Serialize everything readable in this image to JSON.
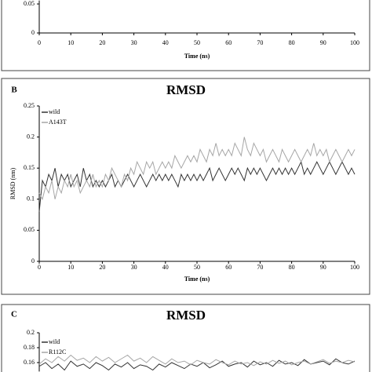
{
  "chart_data": [
    {
      "type": "line",
      "xlabel": "Time (ns)",
      "xlim": [
        0,
        100
      ],
      "xticks": [
        0,
        10,
        20,
        30,
        40,
        50,
        60,
        70,
        80,
        90,
        100
      ],
      "ylim": [
        0,
        0.056
      ],
      "yticks": [
        0,
        0.05
      ]
    },
    {
      "type": "line",
      "panel_label": "B",
      "title": "RMSD",
      "xlabel": "Time (ns)",
      "ylabel": "RMSD (nm)",
      "xlim": [
        0,
        100
      ],
      "xticks": [
        0,
        10,
        20,
        30,
        40,
        50,
        60,
        70,
        80,
        90,
        100
      ],
      "ylim": [
        0,
        0.25
      ],
      "yticks": [
        0,
        0.05,
        0.1,
        0.15,
        0.2,
        0.25
      ],
      "x": [
        0,
        1,
        2,
        3,
        4,
        5,
        6,
        7,
        8,
        9,
        10,
        11,
        12,
        13,
        14,
        15,
        16,
        17,
        18,
        19,
        20,
        21,
        22,
        23,
        24,
        25,
        26,
        27,
        28,
        29,
        30,
        31,
        32,
        33,
        34,
        35,
        36,
        37,
        38,
        39,
        40,
        41,
        42,
        43,
        44,
        45,
        46,
        47,
        48,
        49,
        50,
        51,
        52,
        53,
        54,
        55,
        56,
        57,
        58,
        59,
        60,
        61,
        62,
        63,
        64,
        65,
        66,
        67,
        68,
        69,
        70,
        71,
        72,
        73,
        74,
        75,
        76,
        77,
        78,
        79,
        80,
        81,
        82,
        83,
        84,
        85,
        86,
        87,
        88,
        89,
        90,
        91,
        92,
        93,
        94,
        95,
        96,
        97,
        98,
        99,
        100
      ],
      "series": [
        {
          "name": "wild",
          "color": "#333333",
          "values": [
            0.08,
            0.13,
            0.12,
            0.14,
            0.13,
            0.15,
            0.12,
            0.14,
            0.13,
            0.14,
            0.12,
            0.13,
            0.14,
            0.12,
            0.15,
            0.13,
            0.14,
            0.12,
            0.13,
            0.12,
            0.13,
            0.12,
            0.13,
            0.14,
            0.12,
            0.13,
            0.12,
            0.13,
            0.14,
            0.13,
            0.12,
            0.13,
            0.14,
            0.13,
            0.12,
            0.13,
            0.14,
            0.13,
            0.14,
            0.13,
            0.14,
            0.13,
            0.14,
            0.13,
            0.12,
            0.14,
            0.13,
            0.14,
            0.13,
            0.14,
            0.13,
            0.14,
            0.13,
            0.14,
            0.15,
            0.13,
            0.14,
            0.15,
            0.14,
            0.13,
            0.14,
            0.15,
            0.14,
            0.15,
            0.14,
            0.13,
            0.15,
            0.14,
            0.15,
            0.14,
            0.15,
            0.14,
            0.13,
            0.14,
            0.15,
            0.14,
            0.15,
            0.14,
            0.15,
            0.14,
            0.15,
            0.14,
            0.15,
            0.16,
            0.14,
            0.15,
            0.14,
            0.15,
            0.16,
            0.15,
            0.14,
            0.15,
            0.16,
            0.15,
            0.14,
            0.15,
            0.16,
            0.15,
            0.14,
            0.15,
            0.14
          ]
        },
        {
          "name": "A143T",
          "color": "#a6a6a6",
          "values": [
            0.11,
            0.1,
            0.12,
            0.11,
            0.13,
            0.1,
            0.12,
            0.11,
            0.13,
            0.12,
            0.14,
            0.12,
            0.13,
            0.11,
            0.12,
            0.13,
            0.12,
            0.14,
            0.12,
            0.13,
            0.12,
            0.14,
            0.13,
            0.15,
            0.14,
            0.13,
            0.12,
            0.14,
            0.13,
            0.15,
            0.14,
            0.16,
            0.15,
            0.14,
            0.16,
            0.15,
            0.16,
            0.14,
            0.15,
            0.16,
            0.15,
            0.16,
            0.15,
            0.17,
            0.16,
            0.15,
            0.16,
            0.17,
            0.16,
            0.17,
            0.16,
            0.18,
            0.17,
            0.16,
            0.18,
            0.17,
            0.19,
            0.17,
            0.18,
            0.17,
            0.18,
            0.17,
            0.19,
            0.18,
            0.17,
            0.2,
            0.18,
            0.17,
            0.19,
            0.18,
            0.17,
            0.18,
            0.16,
            0.17,
            0.18,
            0.17,
            0.16,
            0.18,
            0.17,
            0.16,
            0.17,
            0.18,
            0.17,
            0.16,
            0.17,
            0.18,
            0.17,
            0.19,
            0.17,
            0.18,
            0.17,
            0.18,
            0.16,
            0.17,
            0.18,
            0.17,
            0.16,
            0.17,
            0.18,
            0.17,
            0.18
          ]
        }
      ]
    },
    {
      "type": "line",
      "panel_label": "C",
      "title": "RMSD",
      "xlim": [
        0,
        100
      ],
      "ylim": [
        0.148,
        0.2
      ],
      "yticks": [
        0.16,
        0.18,
        0.2
      ],
      "x": [
        0,
        2,
        4,
        6,
        8,
        10,
        12,
        14,
        16,
        18,
        20,
        22,
        24,
        26,
        28,
        30,
        32,
        34,
        36,
        38,
        40,
        42,
        44,
        46,
        48,
        50,
        52,
        54,
        56,
        58,
        60,
        62,
        64,
        66,
        68,
        70,
        72,
        74,
        76,
        78,
        80,
        82,
        84,
        86,
        88,
        90,
        92,
        94,
        96,
        98,
        100
      ],
      "series": [
        {
          "name": "wild",
          "color": "#333333",
          "values": [
            0.155,
            0.16,
            0.152,
            0.158,
            0.15,
            0.162,
            0.155,
            0.158,
            0.152,
            0.16,
            0.156,
            0.15,
            0.158,
            0.154,
            0.16,
            0.152,
            0.157,
            0.155,
            0.15,
            0.158,
            0.154,
            0.16,
            0.156,
            0.152,
            0.158,
            0.155,
            0.16,
            0.153,
            0.157,
            0.162,
            0.155,
            0.158,
            0.16,
            0.154,
            0.162,
            0.157,
            0.16,
            0.155,
            0.163,
            0.158,
            0.16,
            0.156,
            0.164,
            0.158,
            0.16,
            0.162,
            0.157,
            0.165,
            0.16,
            0.158,
            0.162
          ]
        },
        {
          "name": "R112C",
          "color": "#a6a6a6",
          "values": [
            0.158,
            0.165,
            0.16,
            0.168,
            0.162,
            0.17,
            0.163,
            0.166,
            0.16,
            0.168,
            0.162,
            0.167,
            0.16,
            0.165,
            0.17,
            0.162,
            0.166,
            0.16,
            0.168,
            0.163,
            0.158,
            0.165,
            0.16,
            0.162,
            0.157,
            0.163,
            0.16,
            0.158,
            0.164,
            0.16,
            0.157,
            0.162,
            0.158,
            0.16,
            0.156,
            0.161,
            0.158,
            0.163,
            0.159,
            0.162,
            0.157,
            0.16,
            0.162,
            0.158,
            0.161,
            0.164,
            0.159,
            0.162,
            0.16,
            0.163,
            0.161
          ]
        }
      ]
    }
  ]
}
